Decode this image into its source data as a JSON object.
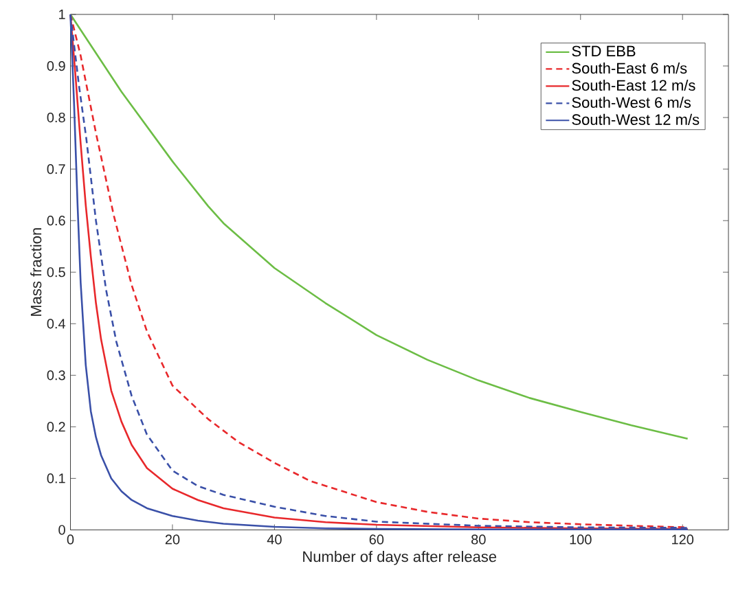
{
  "chart_data": {
    "type": "line",
    "xlabel": "Number of days after release",
    "ylabel": "Mass fraction",
    "xlim": [
      0,
      129
    ],
    "ylim": [
      0,
      1
    ],
    "xticks": [
      0,
      20,
      40,
      60,
      80,
      100,
      120
    ],
    "yticks": [
      0,
      0.1,
      0.2,
      0.3,
      0.4,
      0.5,
      0.6,
      0.7,
      0.8,
      0.9,
      1
    ],
    "legend": "top right",
    "grid": false,
    "marker": "none",
    "series": [
      {
        "name": "STD EBB",
        "color": "#6cbd45",
        "line_style": "solid",
        "x": [
          0,
          10,
          20,
          27,
          30,
          40,
          50,
          60,
          70,
          80,
          90,
          100,
          110,
          121
        ],
        "values": [
          1,
          0.85,
          0.715,
          0.628,
          0.595,
          0.508,
          0.44,
          0.378,
          0.33,
          0.29,
          0.256,
          0.229,
          0.203,
          0.177
        ]
      },
      {
        "name": "South-East 6 m/s",
        "color": "#e8282b",
        "line_style": "dashed",
        "x": [
          0,
          2,
          5,
          8.5,
          12,
          15,
          20,
          27,
          33,
          40,
          47,
          60,
          70,
          80,
          90,
          100,
          110,
          121
        ],
        "values": [
          1,
          0.92,
          0.77,
          0.61,
          0.475,
          0.385,
          0.28,
          0.215,
          0.17,
          0.13,
          0.095,
          0.054,
          0.035,
          0.022,
          0.015,
          0.011,
          0.008,
          0.005
        ]
      },
      {
        "name": "South-East 12 m/s",
        "color": "#e8282b",
        "line_style": "solid",
        "x": [
          0,
          1,
          2,
          3,
          4,
          5,
          6,
          8,
          10,
          12,
          15,
          20,
          25,
          30,
          40,
          50,
          60,
          80,
          100,
          121
        ],
        "values": [
          1,
          0.88,
          0.75,
          0.63,
          0.53,
          0.44,
          0.37,
          0.27,
          0.21,
          0.165,
          0.12,
          0.08,
          0.058,
          0.042,
          0.024,
          0.015,
          0.01,
          0.005,
          0.003,
          0.002
        ]
      },
      {
        "name": "South-West 6 m/s",
        "color": "#3a50a8",
        "line_style": "dashed",
        "x": [
          0,
          1.7,
          3.1,
          5,
          7,
          9,
          12,
          15,
          20,
          25,
          30,
          40,
          50,
          60,
          80,
          100,
          121
        ],
        "values": [
          1,
          0.86,
          0.76,
          0.6,
          0.465,
          0.365,
          0.26,
          0.185,
          0.115,
          0.085,
          0.068,
          0.045,
          0.027,
          0.016,
          0.008,
          0.005,
          0.004
        ]
      },
      {
        "name": "South-West 12 m/s",
        "color": "#3a50a8",
        "line_style": "solid",
        "x": [
          0,
          0.7,
          1.4,
          2,
          3,
          4,
          5,
          6,
          8,
          10,
          12,
          15,
          20,
          25,
          30,
          40,
          50,
          60,
          80,
          121
        ],
        "values": [
          1,
          0.83,
          0.63,
          0.48,
          0.32,
          0.23,
          0.18,
          0.145,
          0.1,
          0.075,
          0.058,
          0.042,
          0.027,
          0.018,
          0.012,
          0.006,
          0.003,
          0.002,
          0.001,
          0.001
        ]
      }
    ]
  }
}
